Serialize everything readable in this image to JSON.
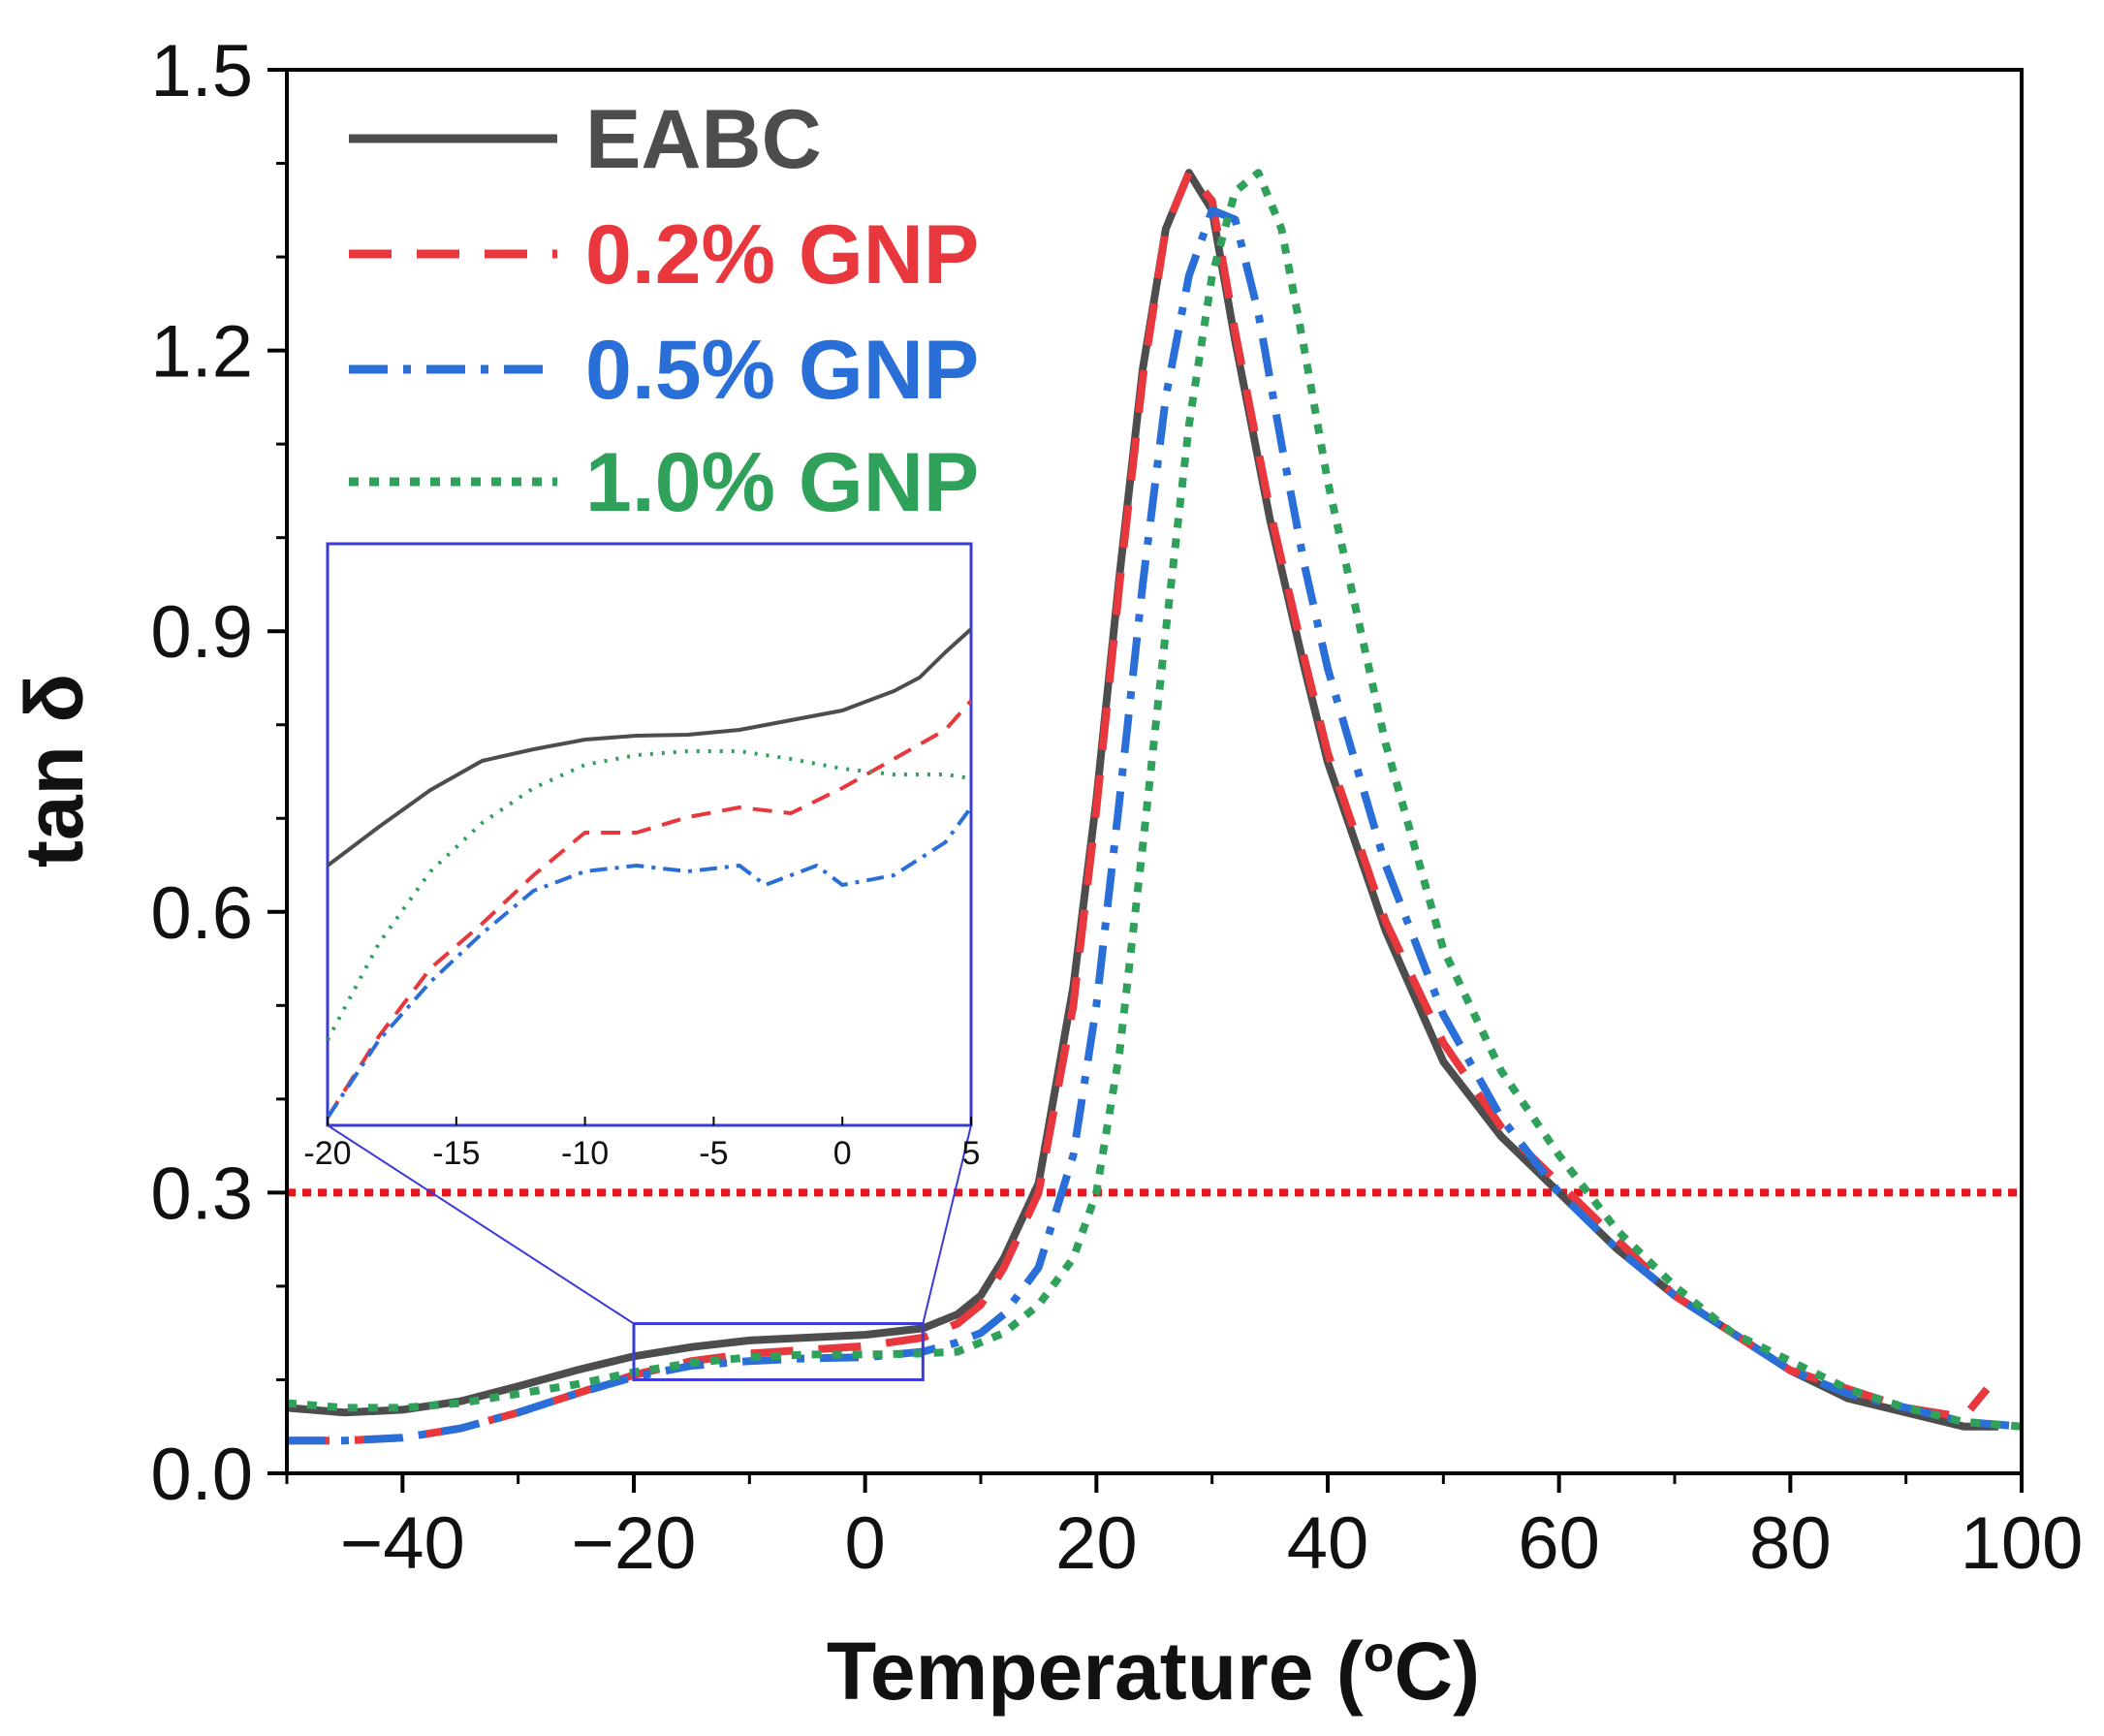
{
  "chart_data": {
    "type": "line",
    "xlabel": "Temperature (",
    "xlabel_sup": "o",
    "xlabel_end": "C)",
    "ylabel": "tan δ",
    "xlim": [
      -50,
      100
    ],
    "ylim": [
      0,
      1.5
    ],
    "xticks": [
      -40,
      -20,
      0,
      20,
      40,
      60,
      80,
      100
    ],
    "xtick_labels": [
      "−40",
      "−20",
      "0",
      "20",
      "40",
      "60",
      "80",
      "100"
    ],
    "yticks": [
      0,
      0.3,
      0.6,
      0.9,
      1.2,
      1.5
    ],
    "ytick_labels": [
      "0.0",
      "0.3",
      "0.6",
      "0.9",
      "1.2",
      "1.5"
    ],
    "reference_line": {
      "y": 0.3,
      "color": "#e8141b",
      "style": "dotted"
    },
    "zoom_box": {
      "x": [
        -20,
        5
      ],
      "y": [
        0.1,
        0.16
      ],
      "color": "#3a3ad8"
    },
    "legend": {
      "position": "top-left"
    },
    "series": [
      {
        "name": "EABC",
        "color": "#4d4d4d",
        "dash": "solid",
        "x": [
          -50,
          -45,
          -40,
          -35,
          -30,
          -25,
          -20,
          -15,
          -10,
          -5,
          0,
          5,
          8,
          10,
          12,
          15,
          18,
          20,
          22,
          24,
          26,
          28,
          30,
          32,
          35,
          38,
          40,
          45,
          50,
          55,
          60,
          65,
          70,
          75,
          80,
          85,
          90,
          95,
          98
        ],
        "y": [
          0.07,
          0.065,
          0.068,
          0.077,
          0.093,
          0.11,
          0.125,
          0.135,
          0.142,
          0.145,
          0.148,
          0.155,
          0.17,
          0.19,
          0.23,
          0.31,
          0.52,
          0.72,
          0.96,
          1.18,
          1.33,
          1.39,
          1.35,
          1.21,
          1.02,
          0.86,
          0.76,
          0.58,
          0.44,
          0.36,
          0.3,
          0.24,
          0.19,
          0.15,
          0.11,
          0.08,
          0.065,
          0.05,
          0.05
        ]
      },
      {
        "name": "0.2% GNP",
        "color": "#e8383d",
        "dash": "long-dash",
        "x": [
          -50,
          -45,
          -40,
          -35,
          -30,
          -25,
          -20,
          -15,
          -10,
          -5,
          0,
          5,
          8,
          10,
          12,
          15,
          18,
          20,
          22,
          24,
          26,
          28,
          30,
          32,
          35,
          38,
          40,
          45,
          50,
          55,
          60,
          65,
          70,
          75,
          80,
          85,
          90,
          95,
          97
        ],
        "y": [
          0.035,
          0.035,
          0.038,
          0.048,
          0.065,
          0.085,
          0.105,
          0.12,
          0.128,
          0.132,
          0.136,
          0.145,
          0.16,
          0.18,
          0.22,
          0.3,
          0.5,
          0.71,
          0.95,
          1.17,
          1.33,
          1.39,
          1.36,
          1.22,
          1.03,
          0.87,
          0.77,
          0.59,
          0.46,
          0.37,
          0.31,
          0.25,
          0.19,
          0.15,
          0.11,
          0.09,
          0.07,
          0.06,
          0.09
        ]
      },
      {
        "name": "0.5% GNP",
        "color": "#2a6fd8",
        "dash": "dash-dot",
        "x": [
          -50,
          -45,
          -40,
          -35,
          -30,
          -25,
          -20,
          -15,
          -10,
          -5,
          0,
          5,
          8,
          10,
          12,
          15,
          18,
          20,
          22,
          24,
          26,
          28,
          30,
          32,
          34,
          36,
          38,
          40,
          45,
          50,
          55,
          60,
          65,
          70,
          75,
          80,
          85,
          90,
          95,
          100
        ],
        "y": [
          0.035,
          0.035,
          0.038,
          0.048,
          0.065,
          0.085,
          0.103,
          0.115,
          0.12,
          0.123,
          0.124,
          0.13,
          0.14,
          0.15,
          0.17,
          0.22,
          0.34,
          0.5,
          0.72,
          0.95,
          1.15,
          1.28,
          1.35,
          1.34,
          1.24,
          1.1,
          0.97,
          0.86,
          0.65,
          0.49,
          0.38,
          0.3,
          0.24,
          0.19,
          0.15,
          0.11,
          0.085,
          0.07,
          0.055,
          0.05
        ]
      },
      {
        "name": "1.0% GNP",
        "color": "#2fa15a",
        "dash": "dotted",
        "x": [
          -50,
          -45,
          -40,
          -35,
          -30,
          -25,
          -20,
          -15,
          -10,
          -5,
          0,
          5,
          8,
          10,
          12,
          15,
          18,
          20,
          22,
          24,
          26,
          28,
          30,
          32,
          34,
          36,
          38,
          40,
          45,
          50,
          55,
          60,
          65,
          70,
          75,
          80,
          85,
          90,
          95,
          100
        ],
        "y": [
          0.075,
          0.07,
          0.07,
          0.075,
          0.085,
          0.095,
          0.108,
          0.118,
          0.124,
          0.127,
          0.127,
          0.128,
          0.13,
          0.14,
          0.15,
          0.18,
          0.23,
          0.3,
          0.45,
          0.67,
          0.9,
          1.12,
          1.28,
          1.37,
          1.39,
          1.33,
          1.2,
          1.06,
          0.78,
          0.56,
          0.43,
          0.34,
          0.26,
          0.2,
          0.15,
          0.12,
          0.09,
          0.07,
          0.055,
          0.05
        ]
      }
    ],
    "inset": {
      "xlim": [
        -20,
        5
      ],
      "ylim": [
        0.1,
        0.16
      ],
      "xticks": [
        -20,
        -15,
        -10,
        -5,
        0,
        5
      ],
      "xtick_labels": [
        "-20",
        "-15",
        "-10",
        "-5",
        "0",
        "5"
      ],
      "series": [
        {
          "name": "EABC",
          "color": "#4d4d4d",
          "dash": "solid",
          "x": [
            -20,
            -18,
            -16,
            -14,
            -12,
            -10,
            -8,
            -6,
            -4,
            -2,
            0,
            2,
            3,
            4,
            5
          ],
          "y": [
            0.1268,
            0.1308,
            0.1346,
            0.1376,
            0.1388,
            0.1398,
            0.1402,
            0.1403,
            0.1408,
            0.1418,
            0.1428,
            0.1448,
            0.1462,
            0.1488,
            0.1512
          ]
        },
        {
          "name": "0.2% GNP",
          "color": "#e8383d",
          "dash": "long-dash",
          "x": [
            -20,
            -18,
            -16,
            -14,
            -12,
            -10,
            -8,
            -6,
            -4,
            -2,
            0,
            2,
            4,
            5
          ],
          "y": [
            0.1008,
            0.1092,
            0.1162,
            0.1208,
            0.1258,
            0.1302,
            0.1302,
            0.1318,
            0.1328,
            0.1322,
            0.1348,
            0.1378,
            0.1408,
            0.1438
          ]
        },
        {
          "name": "0.5% GNP",
          "color": "#2a6fd8",
          "dash": "dash-dot",
          "x": [
            -20,
            -18,
            -16,
            -14,
            -12,
            -10,
            -8,
            -6,
            -4,
            -3,
            -2,
            -1,
            0,
            2,
            4,
            5
          ],
          "y": [
            0.1008,
            0.1088,
            0.1148,
            0.1198,
            0.1242,
            0.1262,
            0.1268,
            0.1262,
            0.1268,
            0.1248,
            0.1258,
            0.1268,
            0.1248,
            0.1258,
            0.1292,
            0.1328
          ]
        },
        {
          "name": "1.0% GNP",
          "color": "#2fa15a",
          "dash": "dotted",
          "x": [
            -20,
            -18,
            -16,
            -14,
            -12,
            -10,
            -8,
            -6,
            -4,
            -2,
            0,
            2,
            4,
            5
          ],
          "y": [
            0.1088,
            0.1188,
            0.1262,
            0.1312,
            0.1348,
            0.1372,
            0.1382,
            0.1386,
            0.1386,
            0.1378,
            0.1368,
            0.1362,
            0.1362,
            0.1358
          ]
        }
      ]
    }
  }
}
